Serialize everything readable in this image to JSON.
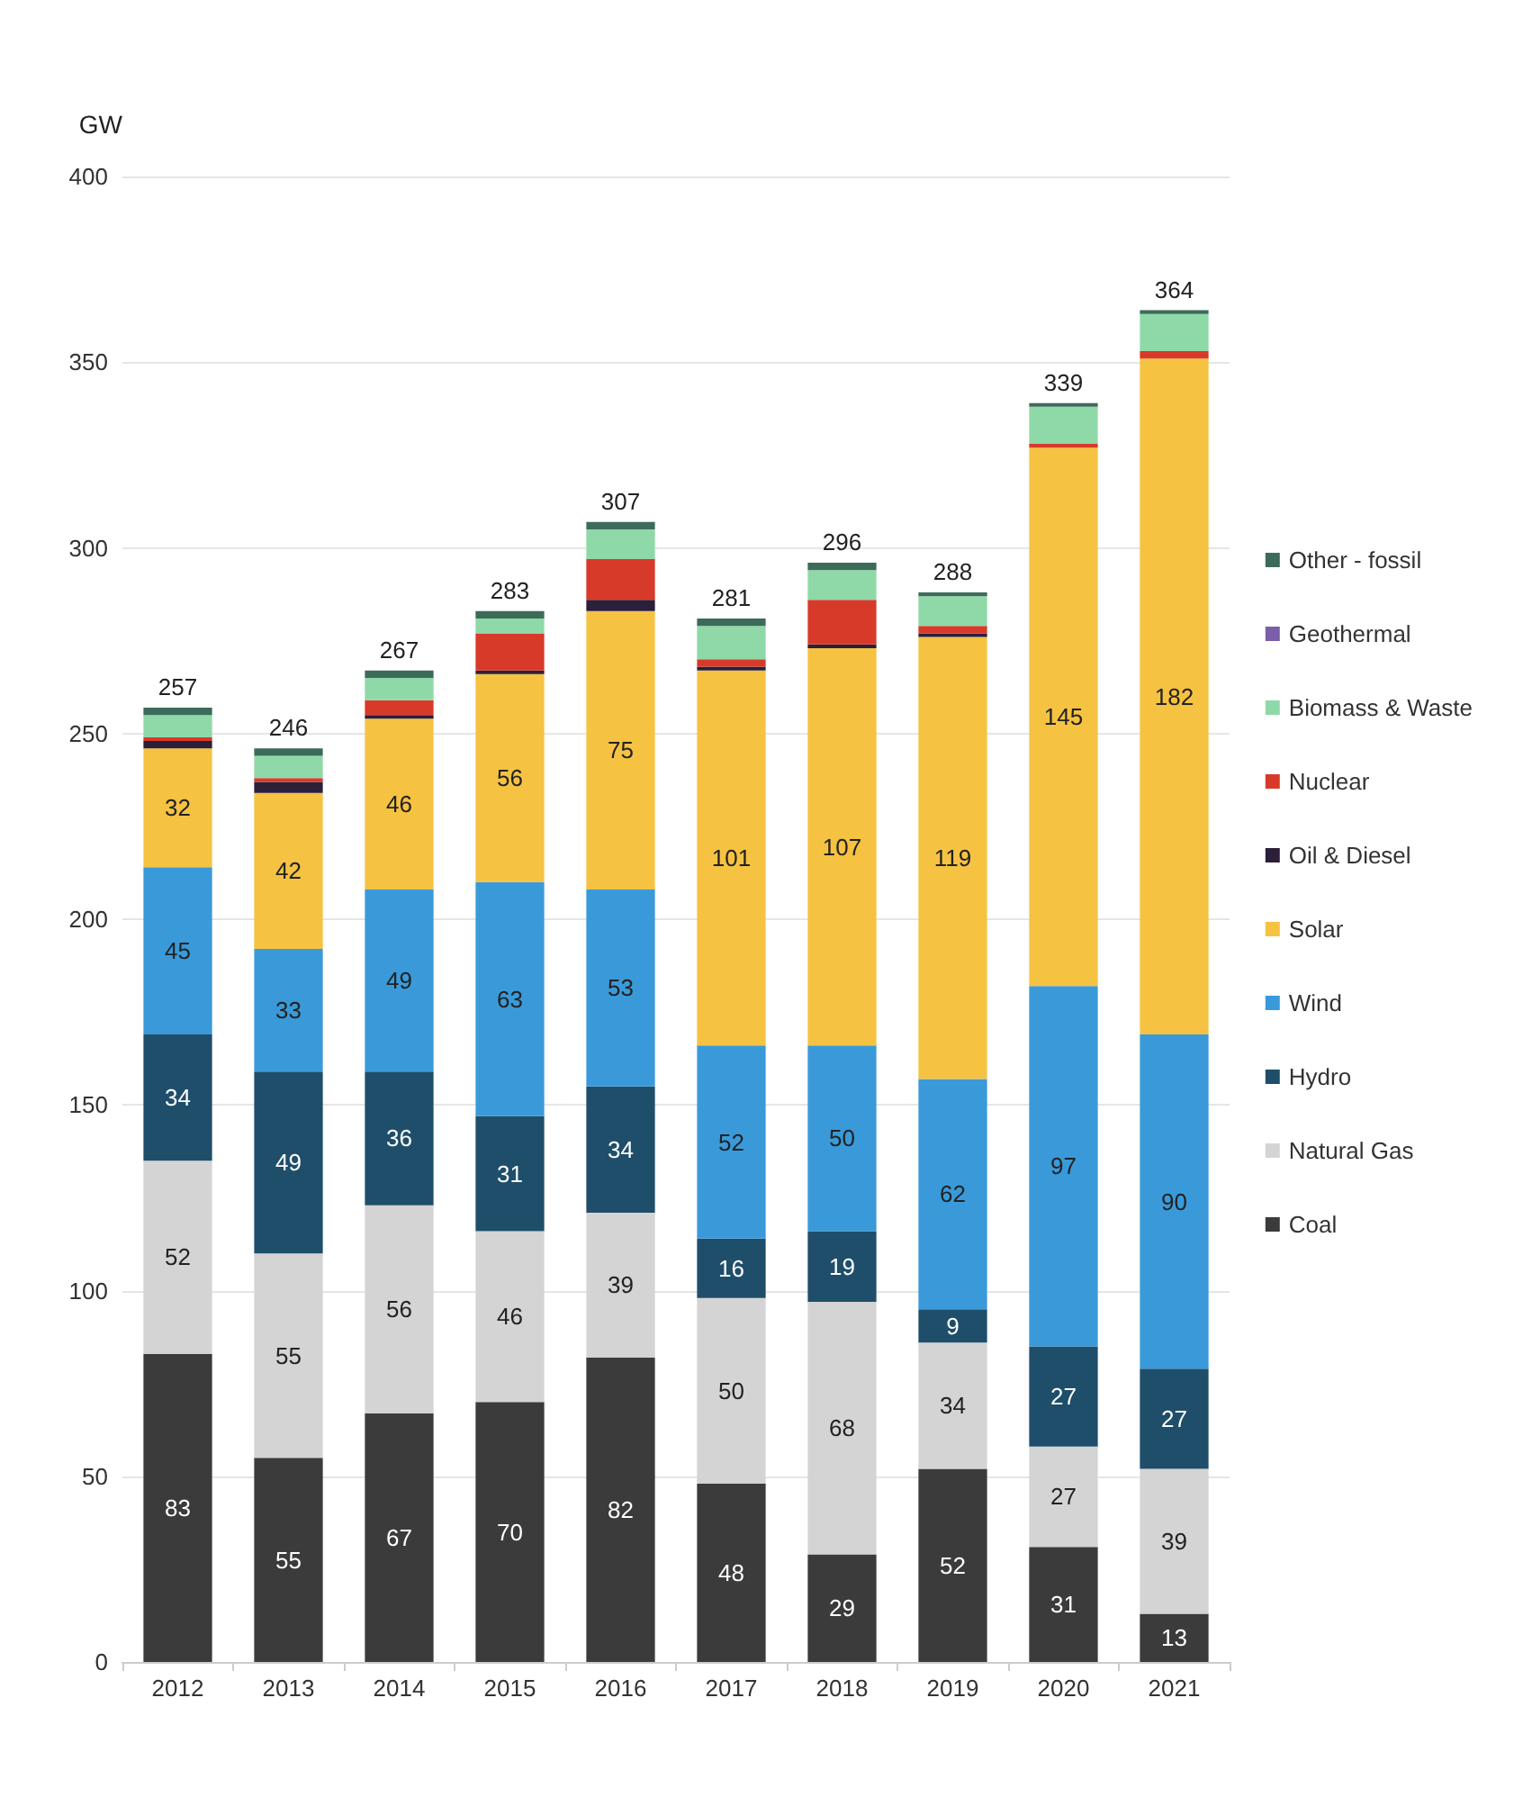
{
  "chart_data": {
    "type": "bar",
    "stacked": true,
    "ylabel": "GW",
    "categories": [
      "2012",
      "2013",
      "2014",
      "2015",
      "2016",
      "2017",
      "2018",
      "2019",
      "2020",
      "2021"
    ],
    "series": [
      {
        "name": "Coal",
        "color": "#3b3b3b",
        "values": [
          83,
          55,
          67,
          70,
          82,
          48,
          29,
          52,
          31,
          13
        ],
        "value_labels": [
          "83",
          "55",
          "67",
          "70",
          "82",
          "48",
          "29",
          "52",
          "31",
          "13"
        ]
      },
      {
        "name": "Natural Gas",
        "color": "#d4d4d4",
        "values": [
          52,
          55,
          56,
          46,
          39,
          50,
          68,
          34,
          27,
          39
        ],
        "value_labels": [
          "52",
          "55",
          "56",
          "46",
          "39",
          "50",
          "68",
          "34",
          "27",
          "39"
        ]
      },
      {
        "name": "Hydro",
        "color": "#1f4e6b",
        "values": [
          34,
          49,
          36,
          31,
          34,
          16,
          19,
          9,
          27,
          27
        ],
        "value_labels": [
          "34",
          "49",
          "36",
          "31",
          "34",
          "16",
          "19",
          "9",
          "27",
          "27"
        ]
      },
      {
        "name": "Wind",
        "color": "#3a9ad9",
        "values": [
          45,
          33,
          49,
          63,
          53,
          52,
          50,
          62,
          97,
          90
        ],
        "value_labels": [
          "45",
          "33",
          "49",
          "63",
          "53",
          "52",
          "50",
          "62",
          "97",
          "90"
        ]
      },
      {
        "name": "Solar",
        "color": "#f5c242",
        "values": [
          32,
          42,
          46,
          56,
          75,
          101,
          107,
          119,
          145,
          182
        ],
        "value_labels": [
          "32",
          "42",
          "46",
          "56",
          "75",
          "101",
          "107",
          "119",
          "145",
          "182"
        ]
      },
      {
        "name": "Oil & Diesel",
        "color": "#2b1f3a",
        "values": [
          2,
          3,
          1,
          1,
          3,
          1,
          1,
          1,
          0,
          0
        ]
      },
      {
        "name": "Nuclear",
        "color": "#d83a2a",
        "values": [
          1,
          1,
          4,
          10,
          11,
          2,
          12,
          2,
          1,
          2
        ]
      },
      {
        "name": "Biomass & Waste",
        "color": "#8fd9a8",
        "values": [
          6,
          6,
          6,
          4,
          8,
          9,
          8,
          8,
          10,
          10
        ]
      },
      {
        "name": "Geothermal",
        "color": "#7b5ea7",
        "values": [
          0,
          0,
          0,
          0,
          0,
          0,
          0,
          0,
          0,
          0
        ]
      },
      {
        "name": "Other - fossil",
        "color": "#3d6b5a",
        "values": [
          2,
          2,
          2,
          2,
          2,
          2,
          2,
          1,
          1,
          1
        ]
      }
    ],
    "totals": [
      "257",
      "246",
      "267",
      "283",
      "307",
      "281",
      "296",
      "288",
      "339",
      "364"
    ],
    "ylim": [
      0,
      400
    ],
    "yticks": [
      0,
      50,
      100,
      150,
      200,
      250,
      300,
      350,
      400
    ],
    "grid": "y",
    "legend": "right"
  }
}
